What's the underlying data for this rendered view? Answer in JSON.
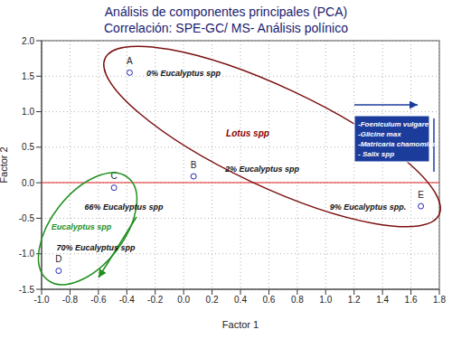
{
  "chart_data": {
    "type": "scatter",
    "title": "Análisis de componentes principales (PCA)",
    "subtitle": "Correlación: SPE-GC/ MS- Análisis polínico",
    "x_label": "Factor 1",
    "y_label": "Factor 2",
    "x": [
      -0.38,
      0.07,
      -0.49,
      -0.88,
      1.67
    ],
    "values": [
      1.55,
      0.09,
      -0.07,
      -1.24,
      -0.33
    ],
    "point_labels": [
      "A",
      "B",
      "C",
      "D",
      "E"
    ],
    "color": "#2323b8",
    "marker": "circle",
    "xlim": [
      -1.0,
      1.8
    ],
    "xticks": [
      {
        "value": -1,
        "label": "-1.0"
      },
      -0.8,
      -0.6,
      -0.4,
      -0.2,
      {
        "value": 0,
        "label": "0.0"
      },
      0.2,
      0.4,
      0.6,
      0.8,
      {
        "value": 1,
        "label": "1.0"
      },
      1.2,
      1.4,
      1.6,
      1.8
    ],
    "ylim": [
      -1.5,
      2.0
    ],
    "yticks": [
      -1.5,
      {
        "value": -1,
        "label": "-1.0"
      },
      -0.5,
      {
        "value": 0,
        "label": "0.0"
      },
      0.5,
      {
        "value": 1,
        "label": "1.0"
      },
      1.5,
      {
        "value": 2,
        "label": "2.0"
      }
    ],
    "grid": true,
    "annotations": [
      "0% Eucalyptus spp",
      "Lotus spp",
      "2% Eucalyptus spp",
      "66% Eucalyptus spp",
      "9% Eucalyptus spp.",
      "Eucalyptus spp",
      "70% Eucalyptus spp"
    ],
    "box": [
      "-Foeniculum vulgare",
      "-Glicine max",
      "-Matricaria chamomilla",
      "- Salix spp"
    ]
  }
}
